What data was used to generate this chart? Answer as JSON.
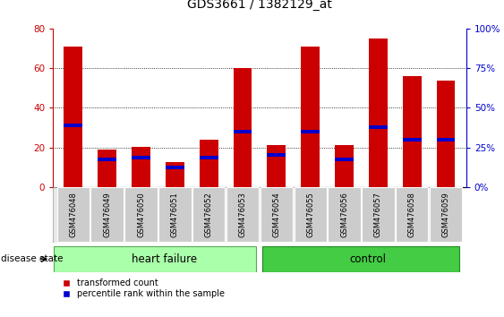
{
  "title": "GDS3661 / 1382129_at",
  "categories": [
    "GSM476048",
    "GSM476049",
    "GSM476050",
    "GSM476051",
    "GSM476052",
    "GSM476053",
    "GSM476054",
    "GSM476055",
    "GSM476056",
    "GSM476057",
    "GSM476058",
    "GSM476059"
  ],
  "red_values": [
    71,
    19,
    20.5,
    12.5,
    24,
    60,
    21,
    71,
    21,
    75,
    56,
    53.5
  ],
  "blue_values": [
    31,
    14,
    15,
    10,
    15,
    28,
    16,
    28,
    14,
    30,
    24,
    24
  ],
  "ylim_left": [
    0,
    80
  ],
  "ylim_right": [
    0,
    100
  ],
  "yticks_left": [
    0,
    20,
    40,
    60,
    80
  ],
  "yticks_right": [
    0,
    25,
    50,
    75,
    100
  ],
  "ytick_labels_right": [
    "0%",
    "25%",
    "50%",
    "75%",
    "100%"
  ],
  "bar_color": "#cc0000",
  "blue_color": "#0000cc",
  "bar_width": 0.55,
  "n_hf": 6,
  "n_ctrl": 6,
  "hf_color": "#aaffaa",
  "ctrl_color": "#44cc44",
  "group_label_hf": "heart failure",
  "group_label_ctrl": "control",
  "disease_state_label": "disease state",
  "legend_red": "transformed count",
  "legend_blue": "percentile rank within the sample",
  "tick_color_left": "#cc0000",
  "tick_color_right": "#0000cc",
  "xlabel_area_color": "#cccccc",
  "grid_yticks": [
    20,
    40,
    60
  ]
}
